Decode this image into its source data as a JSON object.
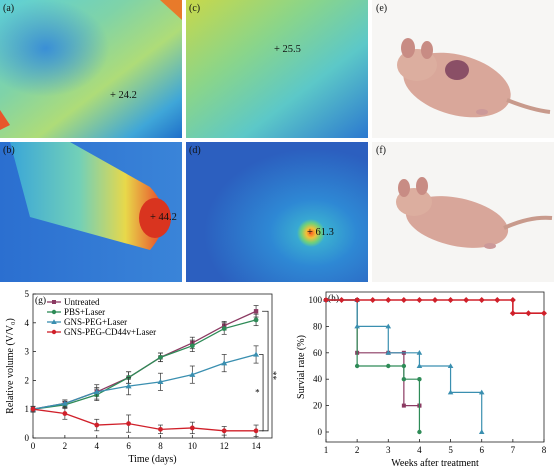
{
  "panels": {
    "a": {
      "label": "(a)",
      "temp": "+ 24.2"
    },
    "b": {
      "label": "(b)",
      "temp": "+ 44.2"
    },
    "c": {
      "label": "(c)",
      "temp": "+ 25.5"
    },
    "d": {
      "label": "(d)",
      "temp": "+ 61.3"
    },
    "e": {
      "label": "(e)"
    },
    "f": {
      "label": "(f)"
    }
  },
  "colors": {
    "untreated": "#8b3a62",
    "pbs": "#2e8b57",
    "gns_peg": "#3a8fb0",
    "gns_cd44": "#d0202a"
  },
  "chart_data": [
    {
      "type": "line",
      "panel_label": "(g)",
      "xlabel": "Time (days)",
      "ylabel": "Relative volume (V/V₀)",
      "x": [
        0,
        2,
        4,
        6,
        8,
        10,
        12,
        14
      ],
      "x_ticks": [
        "0",
        "2",
        "4",
        "6",
        "8",
        "10",
        "12",
        "14"
      ],
      "y_ticks": [
        "0",
        "1",
        "2",
        "3",
        "4",
        "5"
      ],
      "xlim": [
        0,
        15
      ],
      "ylim": [
        0,
        5
      ],
      "series": [
        {
          "name": "Untreated",
          "values": [
            1.0,
            1.2,
            1.6,
            2.1,
            2.8,
            3.3,
            3.9,
            4.4
          ],
          "errors": [
            0.1,
            0.12,
            0.15,
            0.2,
            0.15,
            0.2,
            0.15,
            0.2
          ]
        },
        {
          "name": "PBS+Laser",
          "values": [
            1.0,
            1.15,
            1.5,
            2.1,
            2.8,
            3.2,
            3.8,
            4.1
          ],
          "errors": [
            0.1,
            0.12,
            0.2,
            0.2,
            0.15,
            0.2,
            0.2,
            0.2
          ]
        },
        {
          "name": "GNS-PEG+Laser",
          "values": [
            1.0,
            1.2,
            1.6,
            1.8,
            1.95,
            2.2,
            2.6,
            2.9
          ],
          "errors": [
            0.1,
            0.12,
            0.25,
            0.3,
            0.3,
            0.3,
            0.3,
            0.3
          ]
        },
        {
          "name": "GNS-PEG-CD44v+Laser",
          "values": [
            1.0,
            0.85,
            0.45,
            0.5,
            0.3,
            0.35,
            0.25,
            0.25
          ],
          "errors": [
            0.1,
            0.2,
            0.2,
            0.3,
            0.15,
            0.2,
            0.15,
            0.2
          ]
        }
      ],
      "significance": [
        "**",
        "*"
      ]
    },
    {
      "type": "line",
      "panel_label": "(h)",
      "xlabel": "Weeks after treatment",
      "ylabel": "Survial rate (%)",
      "x_ticks": [
        "1",
        "2",
        "3",
        "4",
        "5",
        "6",
        "7",
        "8"
      ],
      "y_ticks": [
        "0",
        "20",
        "40",
        "60",
        "80",
        "100"
      ],
      "xlim": [
        1,
        8
      ],
      "ylim": [
        0,
        100
      ],
      "series": [
        {
          "name": "Untreated",
          "x": [
            1,
            2,
            2,
            3,
            3.5,
            3.5,
            4,
            4
          ],
          "values": [
            100,
            100,
            60,
            60,
            60,
            20,
            20,
            20
          ]
        },
        {
          "name": "PBS+Laser",
          "x": [
            1,
            2,
            2,
            3,
            3.5,
            3.5,
            4,
            4
          ],
          "values": [
            100,
            100,
            50,
            50,
            50,
            40,
            40,
            0
          ]
        },
        {
          "name": "GNS-PEG+Laser",
          "x": [
            1,
            2,
            2,
            3,
            3,
            4,
            4,
            5,
            5,
            6,
            6
          ],
          "values": [
            100,
            100,
            80,
            80,
            60,
            60,
            50,
            50,
            30,
            30,
            0
          ]
        },
        {
          "name": "GNS-PEG-CD44v+Laser",
          "x": [
            1,
            1.5,
            2,
            2.5,
            3,
            3.5,
            4,
            4.5,
            5,
            5.5,
            6,
            6.5,
            7,
            7,
            7.5,
            8
          ],
          "values": [
            100,
            100,
            100,
            100,
            100,
            100,
            100,
            100,
            100,
            100,
            100,
            100,
            100,
            90,
            90,
            90
          ]
        }
      ]
    }
  ]
}
